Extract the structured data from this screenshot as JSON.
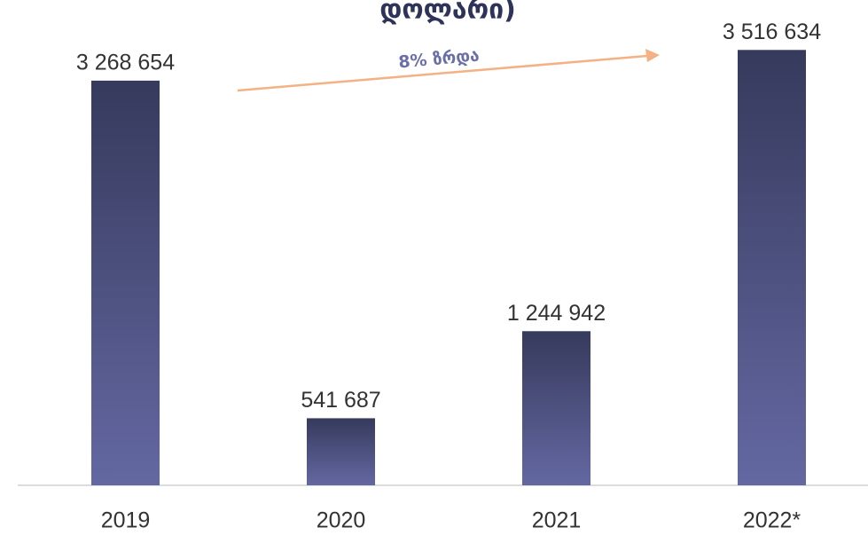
{
  "chart_data": {
    "type": "bar",
    "title": "დოლარი)",
    "annotation": "8% ზრდა",
    "categories": [
      "2019",
      "2020",
      "2021",
      "2022*"
    ],
    "values": [
      3268654,
      541687,
      1244942,
      3516634
    ],
    "value_labels": [
      "3 268 654",
      "541 687",
      "1 244 942",
      "3 516 634"
    ],
    "color": "#4a4e7e",
    "ylim": [
      0,
      3920000
    ]
  }
}
